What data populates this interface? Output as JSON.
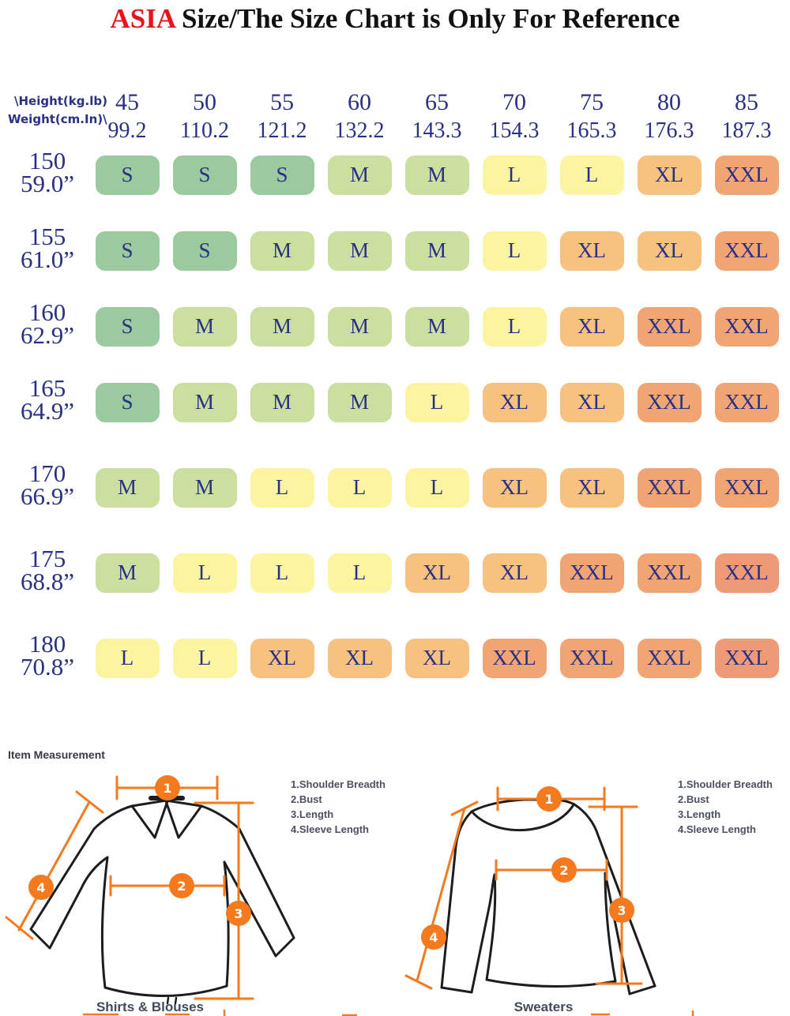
{
  "title": {
    "highlight": "ASIA",
    "text": " Size/The Size Chart is Only For Reference"
  },
  "colors": {
    "title_highlight": "#e8131a",
    "table_text": "#2a3084",
    "accent_orange": "#f5791d",
    "garment_outline": "#1d1d1d",
    "palette": {
      "s": "#9aca9e",
      "m": "#cbdf9e",
      "l": "#fbf5a2",
      "xl": "#f7c180",
      "xxl": "#f1a574",
      "xxl_deep": "#ee9a77"
    }
  },
  "chart_data": {
    "type": "table",
    "title": "ASIA Size/The Size Chart is Only For Reference",
    "corner": {
      "line1": "\\Height(kg.lb)",
      "line2": "Weight(cm.In)\\"
    },
    "columns": [
      {
        "kg": "45",
        "lb": "99.2"
      },
      {
        "kg": "50",
        "lb": "110.2"
      },
      {
        "kg": "55",
        "lb": "121.2"
      },
      {
        "kg": "60",
        "lb": "132.2"
      },
      {
        "kg": "65",
        "lb": "143.3"
      },
      {
        "kg": "70",
        "lb": "154.3"
      },
      {
        "kg": "75",
        "lb": "165.3"
      },
      {
        "kg": "80",
        "lb": "176.3"
      },
      {
        "kg": "85",
        "lb": "187.3"
      }
    ],
    "rows": [
      {
        "cm": "150",
        "inch": "59.0”",
        "sizes": [
          "S",
          "S",
          "S",
          "M",
          "M",
          "L",
          "L",
          "XL",
          "XXL"
        ],
        "tones": [
          "s",
          "s",
          "s",
          "m",
          "m",
          "l",
          "l",
          "xl",
          "xxl"
        ]
      },
      {
        "cm": "155",
        "inch": "61.0”",
        "sizes": [
          "S",
          "S",
          "M",
          "M",
          "M",
          "L",
          "XL",
          "XL",
          "XXL"
        ],
        "tones": [
          "s",
          "s",
          "m",
          "m",
          "m",
          "l",
          "xl",
          "xl",
          "xxl"
        ]
      },
      {
        "cm": "160",
        "inch": "62.9”",
        "sizes": [
          "S",
          "M",
          "M",
          "M",
          "M",
          "L",
          "XL",
          "XXL",
          "XXL"
        ],
        "tones": [
          "s",
          "m",
          "m",
          "m",
          "m",
          "l",
          "xl",
          "xxl",
          "xxl"
        ]
      },
      {
        "cm": "165",
        "inch": "64.9”",
        "sizes": [
          "S",
          "M",
          "M",
          "M",
          "L",
          "XL",
          "XL",
          "XXL",
          "XXL"
        ],
        "tones": [
          "s",
          "m",
          "m",
          "m",
          "l",
          "xl",
          "xl",
          "xxl",
          "xxl"
        ]
      },
      {
        "cm": "170",
        "inch": "66.9”",
        "sizes": [
          "M",
          "M",
          "L",
          "L",
          "L",
          "XL",
          "XL",
          "XXL",
          "XXL"
        ],
        "tones": [
          "m",
          "m",
          "l",
          "l",
          "l",
          "xl",
          "xl",
          "xxl",
          "xxl"
        ]
      },
      {
        "cm": "175",
        "inch": "68.8”",
        "sizes": [
          "M",
          "L",
          "L",
          "L",
          "XL",
          "XL",
          "XXL",
          "XXL",
          "XXL"
        ],
        "tones": [
          "m",
          "l",
          "l",
          "l",
          "xl",
          "xl",
          "xxl",
          "xxl",
          "xxl_deep"
        ]
      },
      {
        "cm": "180",
        "inch": "70.8”",
        "sizes": [
          "L",
          "L",
          "XL",
          "XL",
          "XL",
          "XXL",
          "XXL",
          "XXL",
          "XXL"
        ],
        "tones": [
          "l",
          "l",
          "xl",
          "xl",
          "xl",
          "xxl",
          "xxl",
          "xxl",
          "xxl_deep"
        ]
      }
    ]
  },
  "measurement": {
    "heading": "Item Measurement",
    "legend": [
      "1.Shoulder Breadth",
      "2.Bust",
      "3.Length",
      "4.Sleeve Length"
    ],
    "markers": [
      "1",
      "2",
      "3",
      "4"
    ],
    "left_label": "Shirts & Blouses",
    "right_label": "Sweaters"
  }
}
